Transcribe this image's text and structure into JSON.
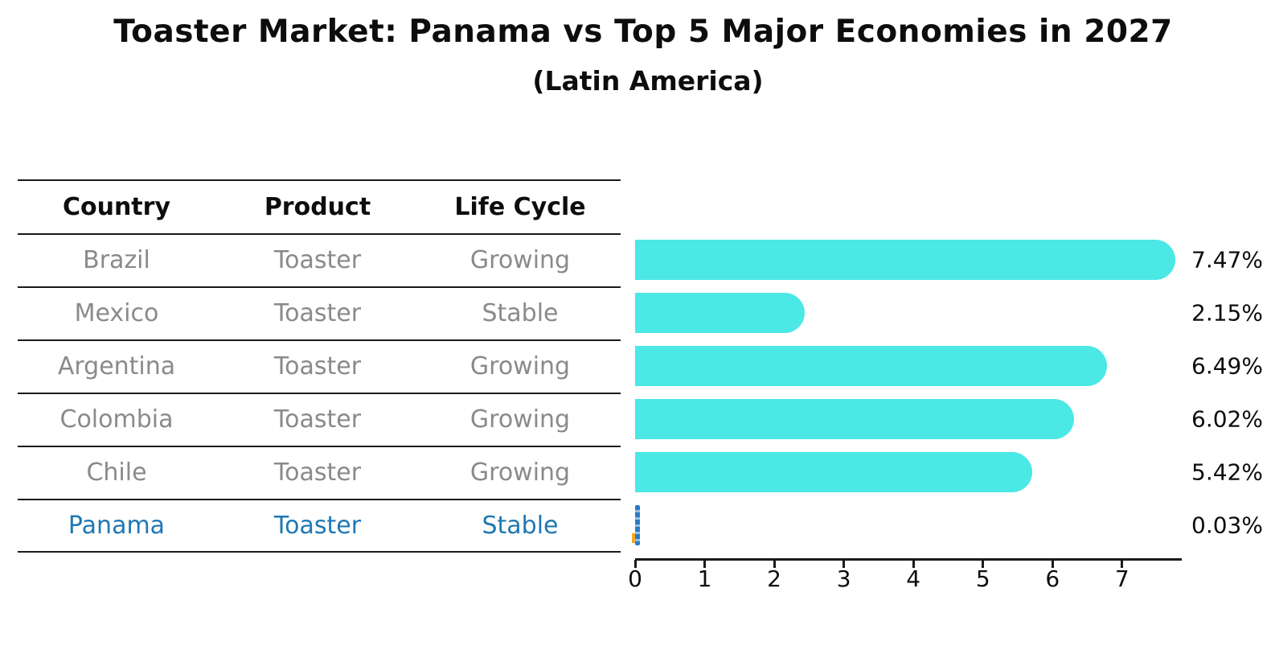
{
  "title": "Toaster Market: Panama vs Top 5 Major Economies in 2027",
  "subtitle": "(Latin America)",
  "table": {
    "headers": [
      "Country",
      "Product",
      "Life Cycle"
    ],
    "rows": [
      {
        "country": "Brazil",
        "product": "Toaster",
        "life_cycle": "Growing",
        "highlight": false
      },
      {
        "country": "Mexico",
        "product": "Toaster",
        "life_cycle": "Stable",
        "highlight": false
      },
      {
        "country": "Argentina",
        "product": "Toaster",
        "life_cycle": "Growing",
        "highlight": false
      },
      {
        "country": "Colombia",
        "product": "Toaster",
        "life_cycle": "Growing",
        "highlight": false
      },
      {
        "country": "Chile",
        "product": "Toaster",
        "life_cycle": "Growing",
        "highlight": false
      },
      {
        "country": "Panama",
        "product": "Toaster",
        "life_cycle": "Stable",
        "highlight": true
      }
    ]
  },
  "chart_data": {
    "type": "bar",
    "orientation": "horizontal",
    "title": "Toaster Market: Panama vs Top 5 Major Economies in 2027",
    "subtitle": "(Latin America)",
    "categories": [
      "Brazil",
      "Mexico",
      "Argentina",
      "Colombia",
      "Chile",
      "Panama"
    ],
    "values": [
      7.47,
      2.15,
      6.49,
      6.02,
      5.42,
      0.03
    ],
    "value_labels": [
      "7.47%",
      "2.15%",
      "6.49%",
      "6.02%",
      "5.42%",
      "0.03%"
    ],
    "xlabel": "",
    "ylabel": "",
    "xlim": [
      0,
      7.85
    ],
    "xticks": [
      "0",
      "1",
      "2",
      "3",
      "4",
      "5",
      "6",
      "7"
    ],
    "grid": false,
    "legend": false,
    "bar_color": "#4be8e5",
    "highlight_color": "#1f77b4",
    "highlight_index": 5
  }
}
